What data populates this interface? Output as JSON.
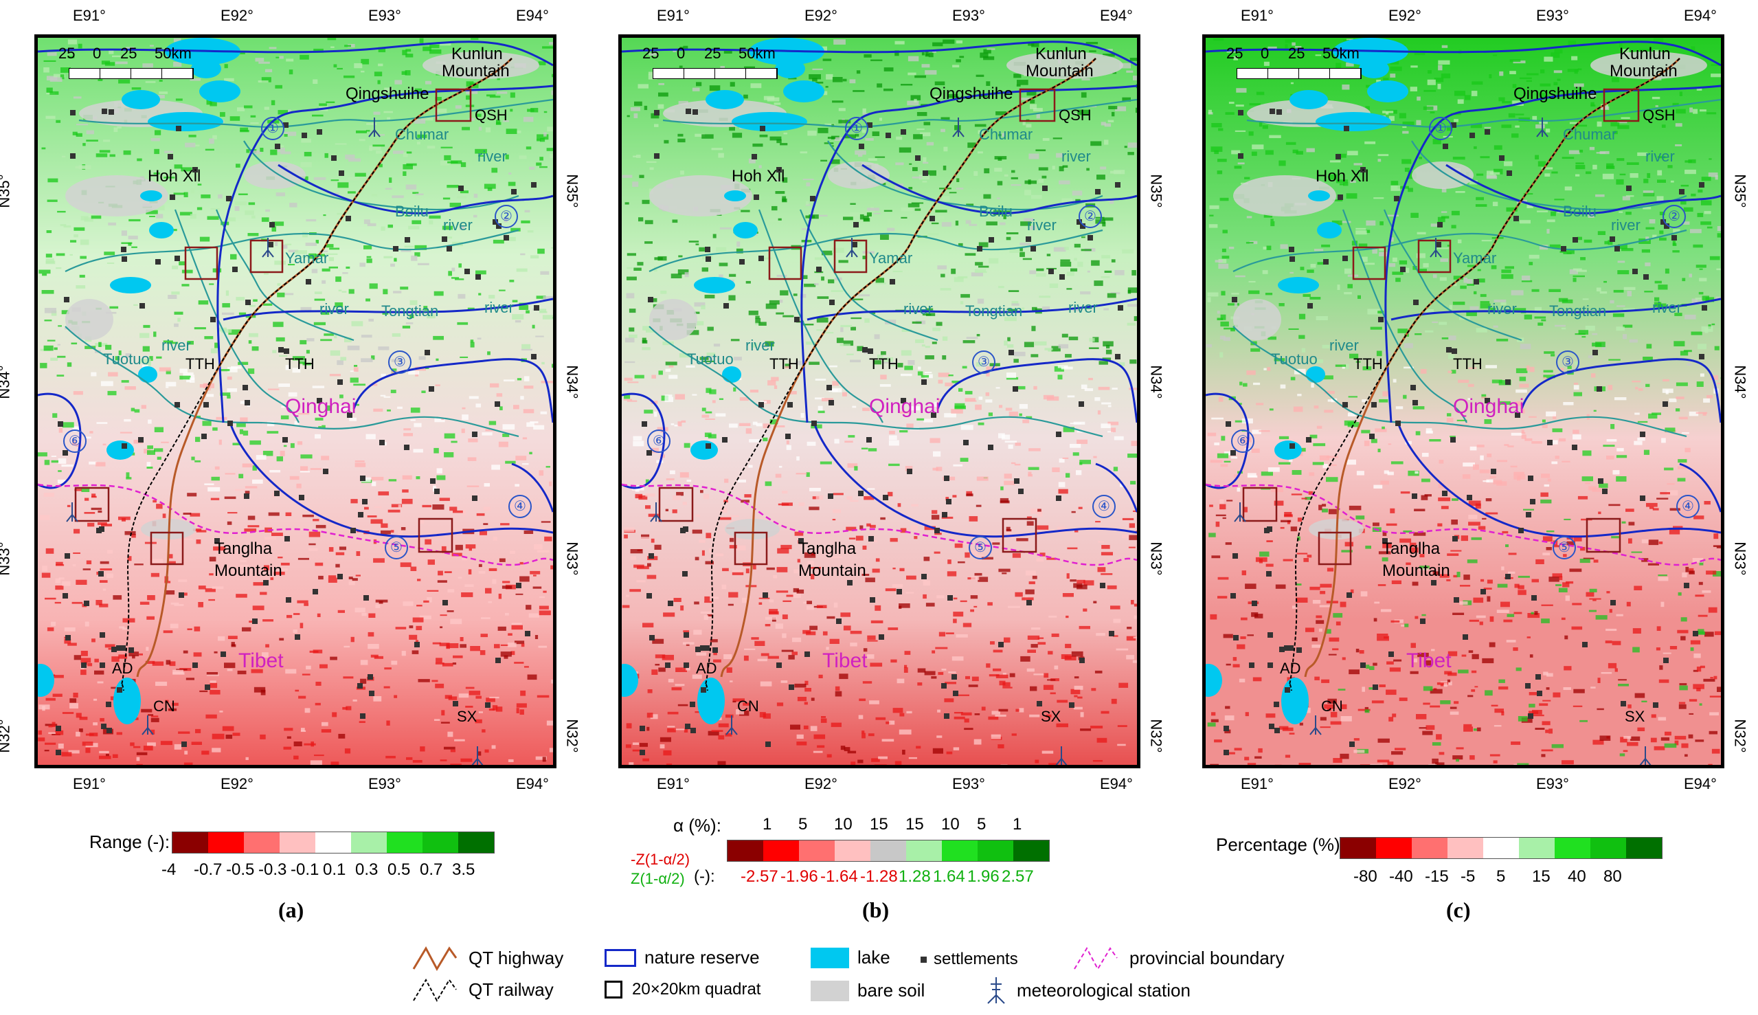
{
  "panels": [
    {
      "id": "a",
      "sub_label": "(a)",
      "legend_title": "Range (-):",
      "legend_colors": [
        "#8b0000",
        "#ff0000",
        "#ff7070",
        "#ffc0c0",
        "#ffffff",
        "#a8f0a8",
        "#20e020",
        "#10c010",
        "#007000"
      ],
      "legend_ticks": [
        "-4",
        "-0.7",
        "-0.5",
        "-0.3",
        "-0.1",
        "0.1",
        "0.3",
        "0.5",
        "0.7",
        "3.5"
      ]
    },
    {
      "id": "b",
      "sub_label": "(b)",
      "legend_title": "α (%):",
      "alpha_values": [
        "1",
        "5",
        "10",
        "15",
        "15",
        "10",
        "5",
        "1"
      ],
      "legend_colors": [
        "#8b0000",
        "#ff0000",
        "#ff7070",
        "#ffc0c0",
        "#c8c8c8",
        "#a8f0a8",
        "#20e020",
        "#10c010",
        "#007000"
      ],
      "z_neg_label": "-Z(1-α/2)",
      "z_pos_label": "Z(1-α/2)",
      "z_unit": "(-):",
      "z_neg_values": [
        "-2.57",
        "-1.96",
        "-1.64",
        "-1.28"
      ],
      "z_pos_values": [
        "1.28",
        "1.64",
        "1.96",
        "2.57"
      ]
    },
    {
      "id": "c",
      "sub_label": "(c)",
      "legend_title": "Percentage (%):",
      "legend_colors": [
        "#8b0000",
        "#ff0000",
        "#ff7070",
        "#ffc0c0",
        "#ffffff",
        "#a8f0a8",
        "#20e020",
        "#10c010",
        "#007000"
      ],
      "legend_ticks": [
        "-80",
        "-40",
        "-15",
        "-5",
        "5",
        "15",
        "40",
        "80"
      ]
    }
  ],
  "map": {
    "top_ticks": [
      "E91°",
      "E92°",
      "E93°",
      "E94°"
    ],
    "bottom_ticks": [
      "E91°",
      "E92°",
      "E93°",
      "E94°"
    ],
    "lat_ticks": [
      "N35°",
      "N34°",
      "N33°",
      "N32°"
    ],
    "left_lat_ticks": [
      "N35°",
      "N34°",
      "N33°",
      "N32°"
    ],
    "scale_numbers": [
      "25",
      "0",
      "25",
      "50km"
    ],
    "place_labels": {
      "kunlun": "Kunlun",
      "mountain": "Mountain",
      "qingshuihe": "Qingshuihe",
      "hoh_xil": "Hoh Xil",
      "tangha": "Tanglha",
      "tangha_mountain": "Mountain",
      "qinghai": "Qinghai",
      "tibet": "Tibet"
    },
    "river_labels": {
      "chumar": "Chumar",
      "river1": "river",
      "beilu": "Beilu",
      "river2": "river",
      "yamar": "Yamar",
      "river3": "river",
      "tongtian": "Tongtian",
      "river4": "river",
      "tuotuo": "Tuotuo",
      "river5": "river"
    },
    "quadrats": [
      "QSH",
      "TTH",
      "TTH",
      "AD",
      "CN",
      "SX"
    ],
    "reserve_numbers": [
      "①",
      "②",
      "③",
      "④",
      "⑤",
      "⑥"
    ]
  },
  "legend": {
    "qt_highway": "QT highway",
    "qt_railway": "QT railway",
    "nature_reserve": "nature reserve",
    "quadrat": "20×20km quadrat",
    "lake": "lake",
    "bare_soil": "bare soil",
    "settlements": "settlements",
    "met_station": "meteorological station",
    "prov_boundary": "provincial boundary"
  },
  "colors": {
    "lake": "#00c8f0",
    "bare_soil": "#d2d2d2",
    "reserve": "#1428c8",
    "highway": "#b85a28",
    "river": "#2a9a9a",
    "province": "#e020d0",
    "quadrat": "#8b1a1a"
  }
}
